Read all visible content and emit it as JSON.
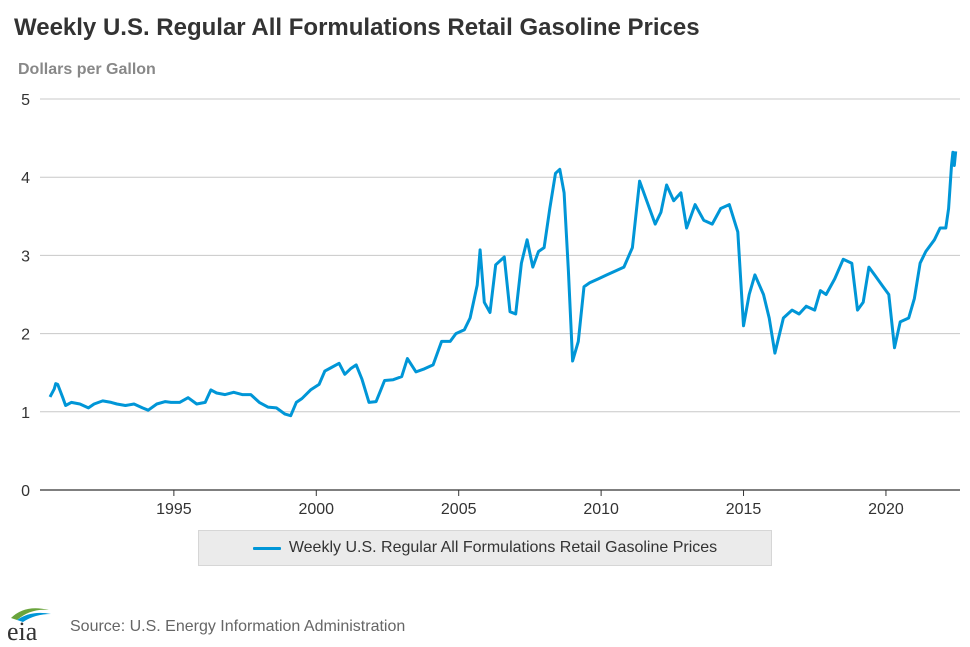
{
  "colors": {
    "series": "#0096d7",
    "grid": "#c8c8c8",
    "axis": "#333333",
    "eia_green": "#6aa43c",
    "eia_blue": "#0096d7"
  },
  "icons": {
    "logo": "eia-logo"
  },
  "logo_text": "eia",
  "chart_data": {
    "type": "line",
    "title": "Weekly U.S. Regular All Formulations Retail Gasoline Prices",
    "ylabel": "Dollars per Gallon",
    "xlabel": "",
    "ylim": [
      0,
      5
    ],
    "xlim": [
      1990.3,
      2022.6
    ],
    "grid": true,
    "legend_position": "bottom",
    "x_ticks": [
      "1995",
      "2000",
      "2005",
      "2010",
      "2015",
      "2020"
    ],
    "y_ticks": [
      "0",
      "1",
      "2",
      "3",
      "4",
      "5"
    ],
    "series": [
      {
        "name": "Weekly U.S. Regular All Formulations Retail Gasoline Prices",
        "x": [
          1990.65,
          1990.8,
          1990.85,
          1990.92,
          1991.1,
          1991.2,
          1991.4,
          1991.7,
          1992.0,
          1992.2,
          1992.5,
          1992.8,
          1993.0,
          1993.3,
          1993.6,
          1993.9,
          1994.1,
          1994.4,
          1994.7,
          1994.9,
          1995.2,
          1995.5,
          1995.8,
          1996.1,
          1996.3,
          1996.5,
          1996.8,
          1997.1,
          1997.4,
          1997.7,
          1998.0,
          1998.3,
          1998.6,
          1998.9,
          1999.1,
          1999.3,
          1999.5,
          1999.8,
          2000.1,
          2000.3,
          2000.5,
          2000.8,
          2001.0,
          2001.2,
          2001.4,
          2001.6,
          2001.85,
          2002.1,
          2002.4,
          2002.7,
          2003.0,
          2003.2,
          2003.5,
          2003.8,
          2004.1,
          2004.4,
          2004.7,
          2004.9,
          2005.2,
          2005.4,
          2005.65,
          2005.75,
          2005.9,
          2006.1,
          2006.3,
          2006.6,
          2006.8,
          2007.0,
          2007.2,
          2007.4,
          2007.6,
          2007.8,
          2008.0,
          2008.2,
          2008.4,
          2008.55,
          2008.7,
          2008.85,
          2009.0,
          2009.2,
          2009.4,
          2009.6,
          2009.9,
          2010.2,
          2010.5,
          2010.8,
          2011.1,
          2011.35,
          2011.6,
          2011.9,
          2012.1,
          2012.3,
          2012.55,
          2012.8,
          2013.0,
          2013.3,
          2013.6,
          2013.9,
          2014.2,
          2014.5,
          2014.8,
          2015.0,
          2015.2,
          2015.4,
          2015.7,
          2015.9,
          2016.1,
          2016.4,
          2016.7,
          2016.95,
          2017.2,
          2017.5,
          2017.7,
          2017.9,
          2018.2,
          2018.5,
          2018.8,
          2019.0,
          2019.2,
          2019.4,
          2019.6,
          2019.9,
          2020.1,
          2020.3,
          2020.5,
          2020.8,
          2021.0,
          2021.2,
          2021.4,
          2021.7,
          2021.9,
          2022.1,
          2022.2,
          2022.3,
          2022.35,
          2022.4,
          2022.45
        ],
        "values": [
          1.19,
          1.29,
          1.36,
          1.35,
          1.18,
          1.08,
          1.12,
          1.1,
          1.05,
          1.1,
          1.14,
          1.12,
          1.1,
          1.08,
          1.1,
          1.05,
          1.02,
          1.1,
          1.13,
          1.12,
          1.12,
          1.18,
          1.1,
          1.12,
          1.28,
          1.24,
          1.22,
          1.25,
          1.22,
          1.22,
          1.12,
          1.06,
          1.05,
          0.97,
          0.95,
          1.12,
          1.17,
          1.28,
          1.35,
          1.52,
          1.56,
          1.62,
          1.48,
          1.55,
          1.6,
          1.42,
          1.12,
          1.13,
          1.4,
          1.41,
          1.45,
          1.68,
          1.51,
          1.55,
          1.6,
          1.9,
          1.9,
          2.0,
          2.05,
          2.2,
          2.62,
          3.07,
          2.4,
          2.27,
          2.88,
          2.98,
          2.28,
          2.25,
          2.9,
          3.2,
          2.85,
          3.05,
          3.1,
          3.6,
          4.05,
          4.1,
          3.8,
          2.8,
          1.65,
          1.9,
          2.6,
          2.65,
          2.7,
          2.75,
          2.8,
          2.85,
          3.1,
          3.95,
          3.7,
          3.4,
          3.55,
          3.9,
          3.7,
          3.8,
          3.35,
          3.65,
          3.45,
          3.4,
          3.6,
          3.65,
          3.3,
          2.1,
          2.5,
          2.75,
          2.5,
          2.2,
          1.75,
          2.2,
          2.3,
          2.25,
          2.35,
          2.3,
          2.55,
          2.5,
          2.7,
          2.95,
          2.9,
          2.3,
          2.4,
          2.85,
          2.75,
          2.6,
          2.5,
          1.82,
          2.15,
          2.2,
          2.45,
          2.9,
          3.05,
          3.2,
          3.35,
          3.35,
          3.6,
          4.15,
          4.32,
          4.15,
          4.33
        ]
      }
    ]
  },
  "legend": {
    "label": "Weekly U.S. Regular All Formulations Retail Gasoline Prices"
  },
  "source": {
    "text": "Source: U.S. Energy Information Administration"
  }
}
